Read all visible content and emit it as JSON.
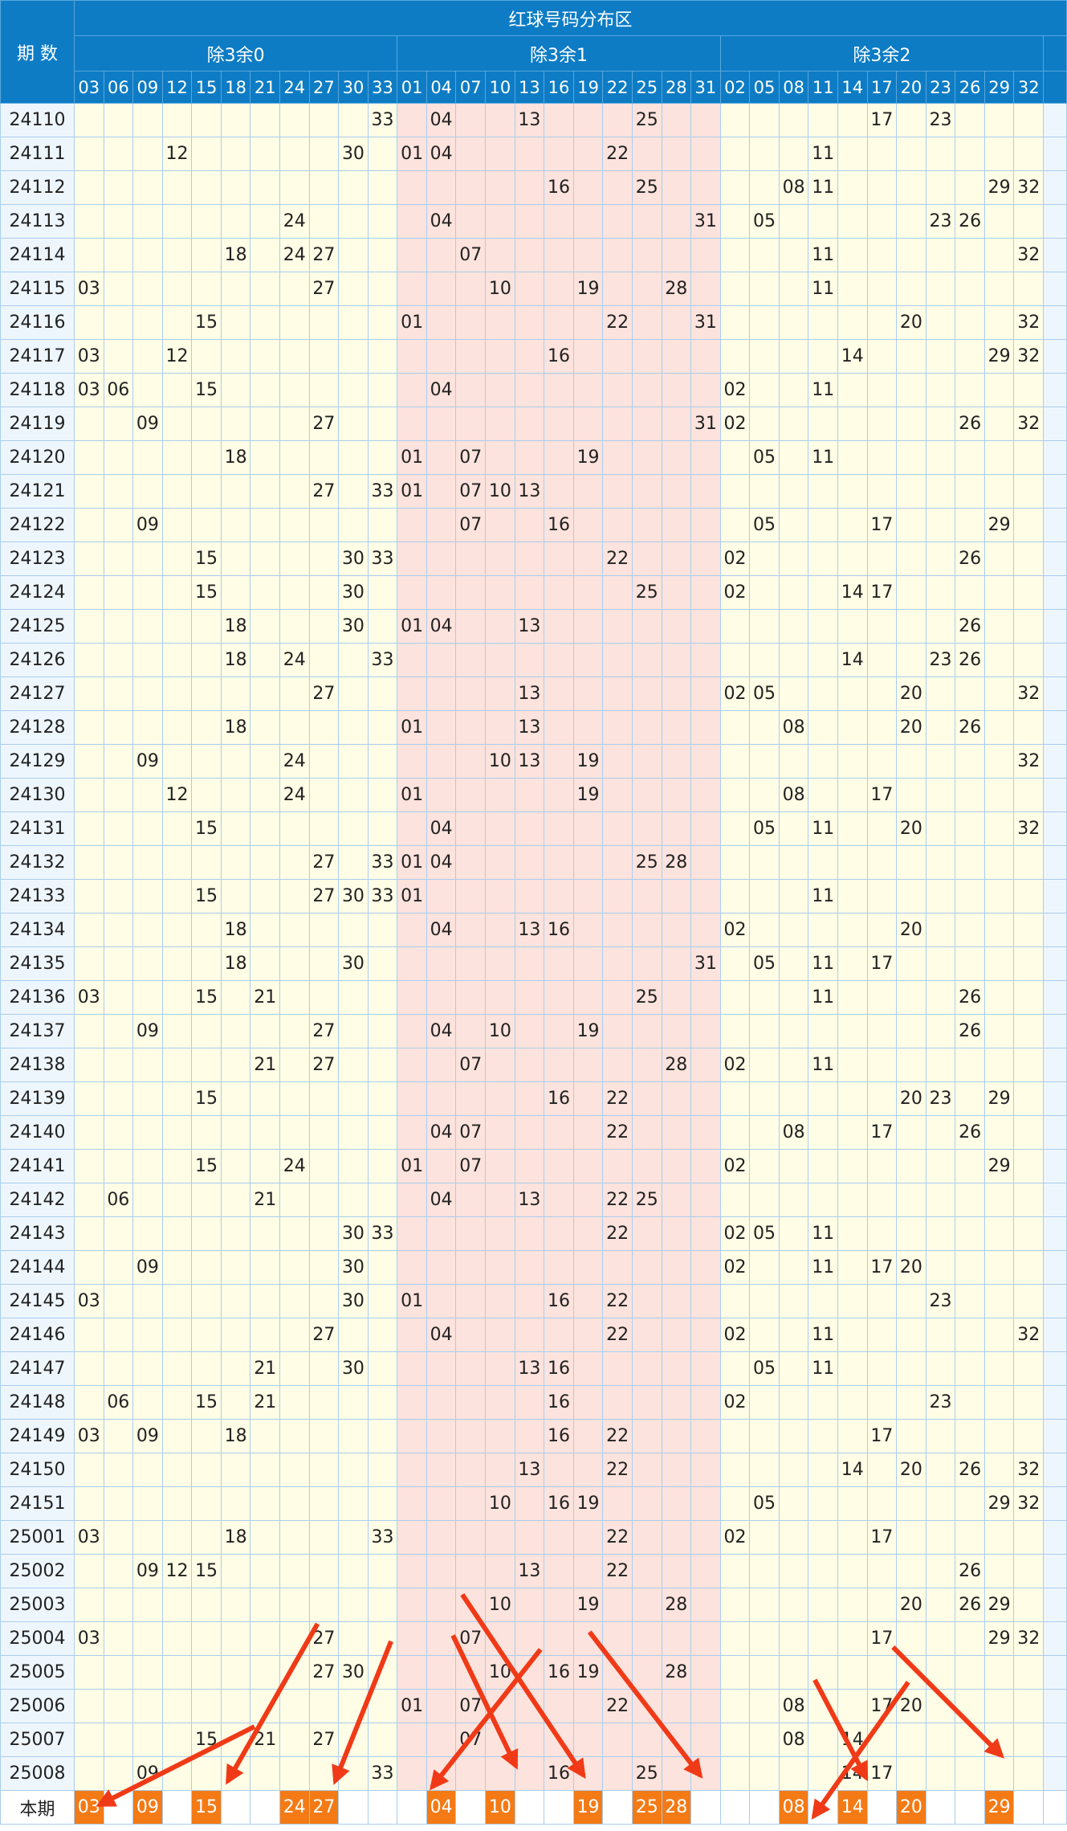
{
  "header": {
    "title": "红球号码分布区",
    "period_label": "期 数",
    "groups": [
      {
        "label": "除3余0",
        "numbers": [
          "03",
          "06",
          "09",
          "12",
          "15",
          "18",
          "21",
          "24",
          "27",
          "30",
          "33"
        ]
      },
      {
        "label": "除3余1",
        "numbers": [
          "01",
          "04",
          "07",
          "10",
          "13",
          "16",
          "19",
          "22",
          "25",
          "28",
          "31"
        ]
      },
      {
        "label": "除3余2",
        "numbers": [
          "02",
          "05",
          "08",
          "11",
          "14",
          "17",
          "20",
          "23",
          "26",
          "29",
          "32"
        ]
      }
    ]
  },
  "rows": [
    {
      "period": "24110",
      "numbers": [
        "33",
        "04",
        "13",
        "25",
        "17",
        "23"
      ]
    },
    {
      "period": "24111",
      "numbers": [
        "12",
        "30",
        "01",
        "04",
        "22",
        "11"
      ]
    },
    {
      "period": "24112",
      "numbers": [
        "16",
        "25",
        "08",
        "11",
        "29",
        "32"
      ]
    },
    {
      "period": "24113",
      "numbers": [
        "24",
        "04",
        "31",
        "05",
        "23",
        "26"
      ]
    },
    {
      "period": "24114",
      "numbers": [
        "18",
        "24",
        "27",
        "07",
        "11",
        "32"
      ]
    },
    {
      "period": "24115",
      "numbers": [
        "03",
        "27",
        "10",
        "19",
        "28",
        "11"
      ]
    },
    {
      "period": "24116",
      "numbers": [
        "15",
        "01",
        "22",
        "31",
        "20",
        "32"
      ]
    },
    {
      "period": "24117",
      "numbers": [
        "03",
        "12",
        "16",
        "14",
        "29",
        "32"
      ]
    },
    {
      "period": "24118",
      "numbers": [
        "03",
        "06",
        "15",
        "04",
        "02",
        "11"
      ]
    },
    {
      "period": "24119",
      "numbers": [
        "09",
        "27",
        "31",
        "02",
        "26",
        "32"
      ]
    },
    {
      "period": "24120",
      "numbers": [
        "18",
        "01",
        "07",
        "19",
        "05",
        "11"
      ]
    },
    {
      "period": "24121",
      "numbers": [
        "27",
        "33",
        "01",
        "07",
        "10",
        "13"
      ]
    },
    {
      "period": "24122",
      "numbers": [
        "09",
        "07",
        "16",
        "05",
        "17",
        "29"
      ]
    },
    {
      "period": "24123",
      "numbers": [
        "15",
        "30",
        "33",
        "22",
        "02",
        "26"
      ]
    },
    {
      "period": "24124",
      "numbers": [
        "15",
        "30",
        "25",
        "02",
        "14",
        "17"
      ]
    },
    {
      "period": "24125",
      "numbers": [
        "18",
        "30",
        "01",
        "04",
        "13",
        "26"
      ]
    },
    {
      "period": "24126",
      "numbers": [
        "18",
        "24",
        "33",
        "14",
        "23",
        "26"
      ]
    },
    {
      "period": "24127",
      "numbers": [
        "27",
        "13",
        "02",
        "05",
        "20",
        "32"
      ]
    },
    {
      "period": "24128",
      "numbers": [
        "18",
        "01",
        "13",
        "08",
        "20",
        "26"
      ]
    },
    {
      "period": "24129",
      "numbers": [
        "09",
        "24",
        "10",
        "13",
        "19",
        "32"
      ]
    },
    {
      "period": "24130",
      "numbers": [
        "12",
        "24",
        "01",
        "19",
        "08",
        "17"
      ]
    },
    {
      "period": "24131",
      "numbers": [
        "15",
        "04",
        "05",
        "11",
        "20",
        "32"
      ]
    },
    {
      "period": "24132",
      "numbers": [
        "27",
        "33",
        "01",
        "04",
        "25",
        "28"
      ]
    },
    {
      "period": "24133",
      "numbers": [
        "15",
        "27",
        "30",
        "33",
        "01",
        "11"
      ]
    },
    {
      "period": "24134",
      "numbers": [
        "18",
        "04",
        "13",
        "16",
        "02",
        "20"
      ]
    },
    {
      "period": "24135",
      "numbers": [
        "18",
        "30",
        "31",
        "05",
        "11",
        "17"
      ]
    },
    {
      "period": "24136",
      "numbers": [
        "03",
        "15",
        "21",
        "25",
        "11",
        "26"
      ]
    },
    {
      "period": "24137",
      "numbers": [
        "09",
        "27",
        "04",
        "10",
        "19",
        "26"
      ]
    },
    {
      "period": "24138",
      "numbers": [
        "21",
        "27",
        "07",
        "28",
        "02",
        "11"
      ]
    },
    {
      "period": "24139",
      "numbers": [
        "15",
        "16",
        "22",
        "20",
        "23",
        "29"
      ]
    },
    {
      "period": "24140",
      "numbers": [
        "04",
        "07",
        "22",
        "08",
        "17",
        "26"
      ]
    },
    {
      "period": "24141",
      "numbers": [
        "15",
        "24",
        "01",
        "07",
        "02",
        "29"
      ]
    },
    {
      "period": "24142",
      "numbers": [
        "06",
        "21",
        "04",
        "13",
        "22",
        "25"
      ]
    },
    {
      "period": "24143",
      "numbers": [
        "30",
        "33",
        "22",
        "02",
        "05",
        "11"
      ]
    },
    {
      "period": "24144",
      "numbers": [
        "09",
        "30",
        "02",
        "11",
        "17",
        "20"
      ]
    },
    {
      "period": "24145",
      "numbers": [
        "03",
        "30",
        "01",
        "16",
        "22",
        "23"
      ]
    },
    {
      "period": "24146",
      "numbers": [
        "27",
        "04",
        "22",
        "02",
        "11",
        "32"
      ]
    },
    {
      "period": "24147",
      "numbers": [
        "21",
        "30",
        "13",
        "16",
        "05",
        "11"
      ]
    },
    {
      "period": "24148",
      "numbers": [
        "06",
        "15",
        "21",
        "16",
        "02",
        "23"
      ]
    },
    {
      "period": "24149",
      "numbers": [
        "03",
        "09",
        "18",
        "16",
        "22",
        "17"
      ]
    },
    {
      "period": "24150",
      "numbers": [
        "13",
        "22",
        "14",
        "20",
        "26",
        "32"
      ]
    },
    {
      "period": "24151",
      "numbers": [
        "10",
        "16",
        "19",
        "05",
        "29",
        "32"
      ]
    },
    {
      "period": "25001",
      "numbers": [
        "03",
        "18",
        "33",
        "22",
        "02",
        "17"
      ]
    },
    {
      "period": "25002",
      "numbers": [
        "09",
        "12",
        "15",
        "13",
        "22",
        "26"
      ]
    },
    {
      "period": "25003",
      "numbers": [
        "10",
        "19",
        "28",
        "20",
        "26",
        "29"
      ]
    },
    {
      "period": "25004",
      "numbers": [
        "03",
        "27",
        "07",
        "17",
        "29",
        "32"
      ]
    },
    {
      "period": "25005",
      "numbers": [
        "27",
        "30",
        "10",
        "16",
        "19",
        "28"
      ]
    },
    {
      "period": "25006",
      "numbers": [
        "01",
        "07",
        "22",
        "08",
        "17",
        "20"
      ]
    },
    {
      "period": "25007",
      "numbers": [
        "15",
        "21",
        "27",
        "07",
        "08",
        "14"
      ]
    },
    {
      "period": "25008",
      "numbers": [
        "09",
        "33",
        "16",
        "25",
        "14",
        "17"
      ]
    }
  ],
  "current": {
    "label": "本期",
    "numbers": [
      "03",
      "09",
      "15",
      "24",
      "27",
      "04",
      "10",
      "19",
      "25",
      "28",
      "08",
      "14",
      "20",
      "29"
    ]
  }
}
